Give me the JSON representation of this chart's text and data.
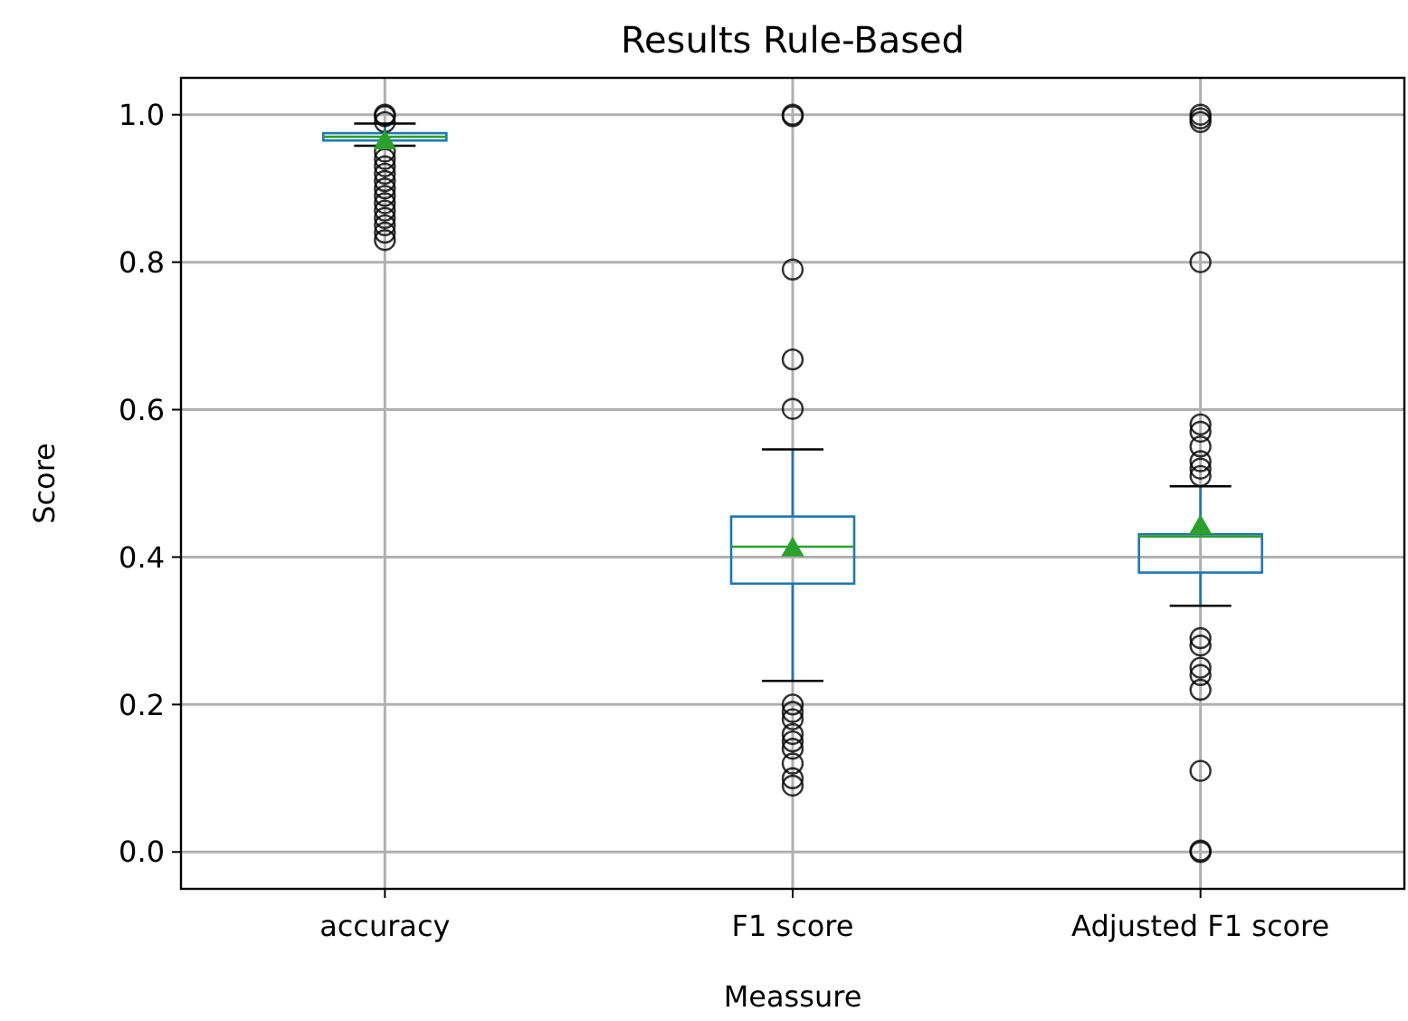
{
  "chart_data": {
    "type": "box",
    "title": "Results Rule-Based",
    "xlabel": "Meassure",
    "ylabel": "Score",
    "categories": [
      "accuracy",
      "F1 score",
      "Adjusted F1 score"
    ],
    "boxes": [
      {
        "low": 0.958,
        "q1": 0.965,
        "median": 0.97,
        "q3": 0.975,
        "high": 0.988,
        "mean": 0.962,
        "outliers": [
          1.0,
          0.998,
          0.99,
          0.95,
          0.94,
          0.93,
          0.92,
          0.91,
          0.9,
          0.89,
          0.88,
          0.87,
          0.86,
          0.85,
          0.84,
          0.83
        ]
      },
      {
        "low": 0.232,
        "q1": 0.364,
        "median": 0.414,
        "q3": 0.455,
        "high": 0.546,
        "mean": 0.41,
        "outliers": [
          1.0,
          0.998,
          0.79,
          0.668,
          0.601,
          0.2,
          0.19,
          0.18,
          0.16,
          0.15,
          0.14,
          0.12,
          0.1,
          0.09
        ]
      },
      {
        "low": 0.334,
        "q1": 0.379,
        "median": 0.428,
        "q3": 0.431,
        "high": 0.496,
        "mean": 0.44,
        "outliers": [
          1.0,
          0.995,
          0.99,
          0.8,
          0.58,
          0.57,
          0.55,
          0.53,
          0.52,
          0.51,
          0.29,
          0.28,
          0.25,
          0.24,
          0.22,
          0.11,
          0.0,
          0.002
        ]
      }
    ],
    "color": "#1f77b4",
    "ylim": [
      -0.05,
      1.05
    ],
    "yticks": [
      {
        "value": 0,
        "label": "0.0"
      },
      {
        "value": 0.2,
        "label": "0.2"
      },
      {
        "value": 0.4,
        "label": "0.4"
      },
      {
        "value": 0.6,
        "label": "0.6"
      },
      {
        "value": 0.8,
        "label": "0.8"
      },
      {
        "value": 1,
        "label": "1.0"
      }
    ],
    "grid": true,
    "marker": "circle"
  }
}
